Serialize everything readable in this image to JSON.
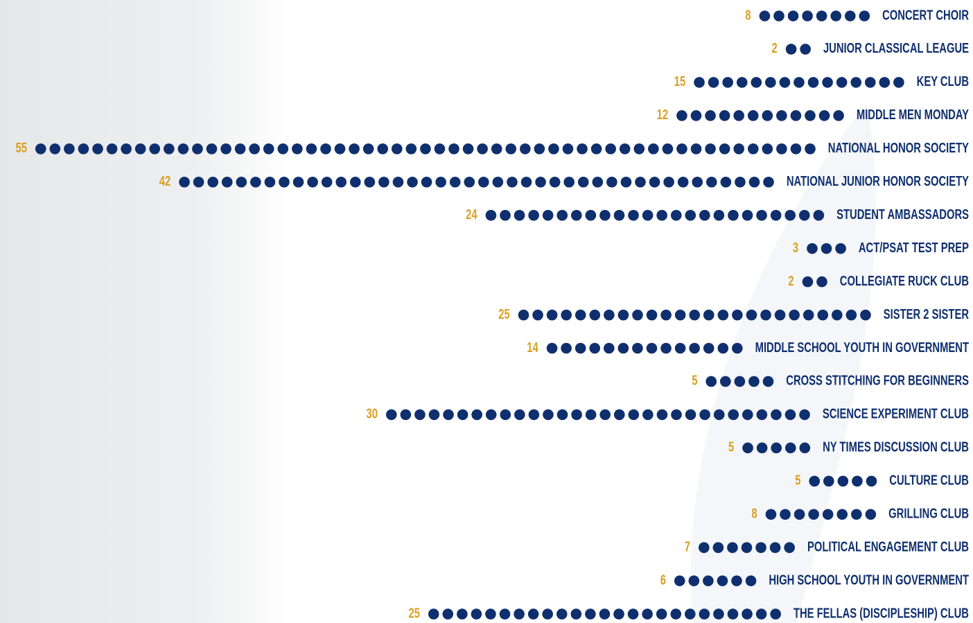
{
  "chart_data": {
    "type": "dot",
    "categories": [
      "CONCERT CHOIR",
      "JUNIOR CLASSICAL LEAGUE",
      "KEY CLUB",
      "MIDDLE MEN MONDAY",
      "NATIONAL HONOR SOCIETY",
      "NATIONAL JUNIOR HONOR SOCIETY",
      "STUDENT AMBASSADORS",
      "ACT/PSAT TEST PREP",
      "COLLEGIATE RUCK CLUB",
      "SISTER 2 SISTER",
      "MIDDLE SCHOOL YOUTH IN GOVERNMENT",
      "CROSS STITCHING FOR BEGINNERS",
      "SCIENCE EXPERIMENT CLUB",
      "NY TIMES DISCUSSION CLUB",
      "CULTURE CLUB",
      "GRILLING CLUB",
      "POLITICAL ENGAGEMENT CLUB",
      "HIGH SCHOOL YOUTH IN GOVERNMENT",
      "THE FELLAS (DISCIPLESHIP) CLUB"
    ],
    "values": [
      8,
      2,
      15,
      12,
      55,
      42,
      24,
      3,
      2,
      25,
      14,
      5,
      30,
      5,
      5,
      8,
      7,
      6,
      25
    ],
    "color": "#0f2f6e",
    "label_color": "#d9a020"
  }
}
